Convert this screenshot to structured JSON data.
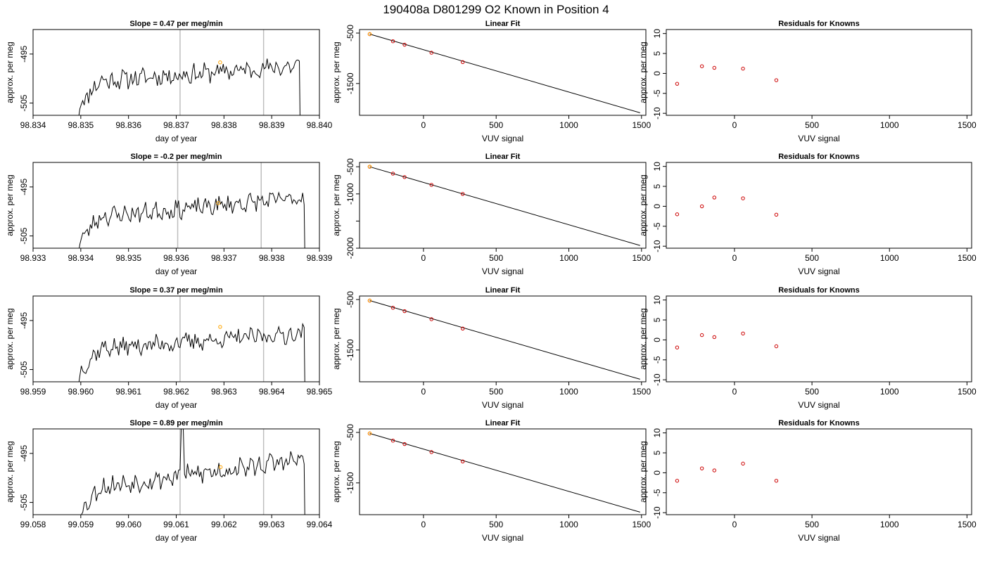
{
  "page_title": "190408a     D801299   O2 Known in Position  4",
  "colors": {
    "trace": "#000000",
    "marker": "#ffa500",
    "point": "#cc0000",
    "vline": "#bebebe",
    "axis": "#000000"
  },
  "chart_data": [
    {
      "type": "line",
      "title": "Slope =  0.47  per meg/min",
      "xlabel": "day of year",
      "ylabel": "approx. per meg",
      "xlim": [
        98.834,
        98.84
      ],
      "ylim": [
        -507.5,
        -490
      ],
      "xticks": [
        98.834,
        98.835,
        98.836,
        98.837,
        98.838,
        98.839,
        98.84
      ],
      "xtick_labels": [
        "98.834",
        "98.835",
        "98.836",
        "98.837",
        "98.838",
        "98.839",
        "98.840"
      ],
      "yticks": [
        -505,
        -495
      ],
      "ytick_labels": [
        "-505",
        "-495"
      ],
      "vlines": [
        98.83708,
        98.83883
      ],
      "trace_start": 98.83498,
      "trace_end": 98.83958,
      "trace_bottom": -510,
      "level_start": -500.8,
      "level_end": -497.4,
      "noise_amp": 1.7,
      "drop_end": -512,
      "seed": 11,
      "marker": [
        98.83792,
        -496.7
      ]
    },
    {
      "type": "scatter",
      "title": "Linear Fit",
      "xlabel": "VUV signal",
      "ylabel": "approx. per meg",
      "xlim": [
        -440,
        1530
      ],
      "ylim": [
        -2130,
        -430
      ],
      "xticks": [
        0,
        500,
        1000,
        1500
      ],
      "xtick_labels": [
        "0",
        "500",
        "1000",
        "1500"
      ],
      "yticks": [
        -500,
        -1500
      ],
      "ytick_labels": [
        "-500",
        "-1500"
      ],
      "fit_line": [
        [
          -370,
          -520
        ],
        [
          1490,
          -2080
        ]
      ],
      "points": [
        [
          -370,
          -522
        ],
        [
          -210,
          -663
        ],
        [
          -130,
          -730
        ],
        [
          55,
          -890
        ],
        [
          270,
          -1075
        ]
      ],
      "highlight": [
        -370,
        -519
      ]
    },
    {
      "type": "scatter",
      "title": "Residuals for Knowns",
      "xlabel": "VUV signal",
      "ylabel": "approx. per meg",
      "xlim": [
        -440,
        1530
      ],
      "ylim": [
        -10.5,
        11
      ],
      "xticks": [
        0,
        500,
        1000,
        1500
      ],
      "xtick_labels": [
        "0",
        "500",
        "1000",
        "1500"
      ],
      "yticks": [
        -10,
        -5,
        0,
        5,
        10
      ],
      "ytick_labels": [
        "-10",
        "-5",
        "0",
        "5",
        "10"
      ],
      "points": [
        [
          -370,
          -2.6
        ],
        [
          -210,
          1.8
        ],
        [
          -130,
          1.4
        ],
        [
          55,
          1.2
        ],
        [
          270,
          -1.7
        ]
      ]
    },
    {
      "type": "line",
      "title": "Slope =  -0.2  per meg/min",
      "xlabel": "day of year",
      "ylabel": "approx. per meg",
      "xlim": [
        98.933,
        98.939
      ],
      "ylim": [
        -507.5,
        -490
      ],
      "xticks": [
        98.933,
        98.934,
        98.935,
        98.936,
        98.937,
        98.938,
        98.939
      ],
      "xtick_labels": [
        "98.933",
        "98.934",
        "98.935",
        "98.936",
        "98.937",
        "98.938",
        "98.939"
      ],
      "yticks": [
        -505,
        -495
      ],
      "ytick_labels": [
        "-505",
        "-495"
      ],
      "vlines": [
        98.93603,
        98.93778
      ],
      "trace_start": 98.93398,
      "trace_end": 98.93868,
      "trace_bottom": -510,
      "level_start": -501.4,
      "level_end": -497.2,
      "noise_amp": 1.6,
      "drop_end": -512,
      "seed": 23,
      "marker": [
        98.93688,
        -498.3
      ]
    },
    {
      "type": "scatter",
      "title": "Linear Fit",
      "xlabel": "VUV signal",
      "ylabel": "approx. per meg",
      "xlim": [
        -440,
        1530
      ],
      "ylim": [
        -2000,
        -420
      ],
      "xticks": [
        0,
        500,
        1000,
        1500
      ],
      "xtick_labels": [
        "0",
        "500",
        "1000",
        "1500"
      ],
      "yticks": [
        -500,
        -1000,
        -1500,
        -2000
      ],
      "ytick_labels": [
        "-500",
        "-1000",
        "",
        "-2000"
      ],
      "fit_line": [
        [
          -370,
          -500
        ],
        [
          1490,
          -1950
        ]
      ],
      "points": [
        [
          -370,
          -500
        ],
        [
          -210,
          -627
        ],
        [
          -130,
          -690
        ],
        [
          55,
          -834
        ],
        [
          270,
          -1000
        ]
      ],
      "highlight": [
        -370,
        -497
      ]
    },
    {
      "type": "scatter",
      "title": "Residuals for Knowns",
      "xlabel": "VUV signal",
      "ylabel": "approx. per meg",
      "xlim": [
        -440,
        1530
      ],
      "ylim": [
        -10.5,
        11
      ],
      "xticks": [
        0,
        500,
        1000,
        1500
      ],
      "xtick_labels": [
        "0",
        "500",
        "1000",
        "1500"
      ],
      "yticks": [
        -10,
        -5,
        0,
        5,
        10
      ],
      "ytick_labels": [
        "-10",
        "-5",
        "0",
        "5",
        "10"
      ],
      "points": [
        [
          -370,
          -2.0
        ],
        [
          -210,
          0.0
        ],
        [
          -130,
          2.2
        ],
        [
          55,
          2.0
        ],
        [
          270,
          -2.1
        ]
      ]
    },
    {
      "type": "line",
      "title": "Slope =  0.37  per meg/min",
      "xlabel": "day of year",
      "ylabel": "approx. per meg",
      "xlim": [
        98.959,
        98.965
      ],
      "ylim": [
        -507.5,
        -490
      ],
      "xticks": [
        98.959,
        98.96,
        98.961,
        98.962,
        98.963,
        98.964,
        98.965
      ],
      "xtick_labels": [
        "98.959",
        "98.960",
        "98.961",
        "98.962",
        "98.963",
        "98.964",
        "98.965"
      ],
      "yticks": [
        -505,
        -495
      ],
      "ytick_labels": [
        "-505",
        "-495"
      ],
      "vlines": [
        98.96208,
        98.96383
      ],
      "trace_start": 98.95998,
      "trace_end": 98.96468,
      "trace_bottom": -510,
      "level_start": -501.0,
      "level_end": -497.6,
      "noise_amp": 1.6,
      "drop_end": -512,
      "seed": 37,
      "marker": [
        98.96292,
        -496.3
      ]
    },
    {
      "type": "scatter",
      "title": "Linear Fit",
      "xlabel": "VUV signal",
      "ylabel": "approx. per meg",
      "xlim": [
        -440,
        1530
      ],
      "ylim": [
        -2130,
        -430
      ],
      "xticks": [
        0,
        500,
        1000,
        1500
      ],
      "xtick_labels": [
        "0",
        "500",
        "1000",
        "1500"
      ],
      "yticks": [
        -500,
        -1500
      ],
      "ytick_labels": [
        "-500",
        "-1500"
      ],
      "fit_line": [
        [
          -370,
          -520
        ],
        [
          1490,
          -2080
        ]
      ],
      "points": [
        [
          -370,
          -522
        ],
        [
          -210,
          -663
        ],
        [
          -130,
          -730
        ],
        [
          55,
          -890
        ],
        [
          270,
          -1075
        ]
      ],
      "highlight": [
        -370,
        -519
      ]
    },
    {
      "type": "scatter",
      "title": "Residuals for Knowns",
      "xlabel": "VUV signal",
      "ylabel": "approx. per meg",
      "xlim": [
        -440,
        1530
      ],
      "ylim": [
        -10.5,
        11
      ],
      "xticks": [
        0,
        500,
        1000,
        1500
      ],
      "xtick_labels": [
        "0",
        "500",
        "1000",
        "1500"
      ],
      "yticks": [
        -10,
        -5,
        0,
        5,
        10
      ],
      "ytick_labels": [
        "-10",
        "-5",
        "0",
        "5",
        "10"
      ],
      "points": [
        [
          -370,
          -1.9
        ],
        [
          -210,
          1.2
        ],
        [
          -130,
          0.7
        ],
        [
          55,
          1.6
        ],
        [
          270,
          -1.6
        ]
      ]
    },
    {
      "type": "line",
      "title": "Slope =  0.89  per meg/min",
      "xlabel": "day of year",
      "ylabel": "approx. per meg",
      "xlim": [
        99.058,
        99.064
      ],
      "ylim": [
        -507.5,
        -490
      ],
      "xticks": [
        99.058,
        99.059,
        99.06,
        99.061,
        99.062,
        99.063,
        99.064
      ],
      "xtick_labels": [
        "99.058",
        "99.059",
        "99.060",
        "99.061",
        "99.062",
        "99.063",
        "99.064"
      ],
      "yticks": [
        -505,
        -495
      ],
      "ytick_labels": [
        "-505",
        "-495"
      ],
      "vlines": [
        99.06108,
        99.06283
      ],
      "trace_start": 99.05898,
      "trace_end": 99.06368,
      "trace_bottom": -510,
      "level_start": -502.4,
      "level_end": -496.2,
      "noise_amp": 1.8,
      "drop_end": -512,
      "seed": 53,
      "spike": [
        99.06113,
        -488
      ],
      "marker": [
        99.06193,
        -497.8
      ]
    },
    {
      "type": "scatter",
      "title": "Linear Fit",
      "xlabel": "VUV signal",
      "ylabel": "approx. per meg",
      "xlim": [
        -440,
        1530
      ],
      "ylim": [
        -2130,
        -430
      ],
      "xticks": [
        0,
        500,
        1000,
        1500
      ],
      "xtick_labels": [
        "0",
        "500",
        "1000",
        "1500"
      ],
      "yticks": [
        -500,
        -1500
      ],
      "ytick_labels": [
        "-500",
        "-1500"
      ],
      "fit_line": [
        [
          -370,
          -520
        ],
        [
          1490,
          -2080
        ]
      ],
      "points": [
        [
          -370,
          -522
        ],
        [
          -210,
          -663
        ],
        [
          -130,
          -730
        ],
        [
          55,
          -890
        ],
        [
          270,
          -1075
        ]
      ],
      "highlight": [
        -370,
        -519
      ]
    },
    {
      "type": "scatter",
      "title": "Residuals for Knowns",
      "xlabel": "VUV signal",
      "ylabel": "approx. per meg",
      "xlim": [
        -440,
        1530
      ],
      "ylim": [
        -10.5,
        11
      ],
      "xticks": [
        0,
        500,
        1000,
        1500
      ],
      "xtick_labels": [
        "0",
        "500",
        "1000",
        "1500"
      ],
      "yticks": [
        -10,
        -5,
        0,
        5,
        10
      ],
      "ytick_labels": [
        "-10",
        "-5",
        "0",
        "5",
        "10"
      ],
      "points": [
        [
          -370,
          -2.0
        ],
        [
          -210,
          1.1
        ],
        [
          -130,
          0.6
        ],
        [
          55,
          2.3
        ],
        [
          270,
          -2.0
        ]
      ]
    }
  ]
}
